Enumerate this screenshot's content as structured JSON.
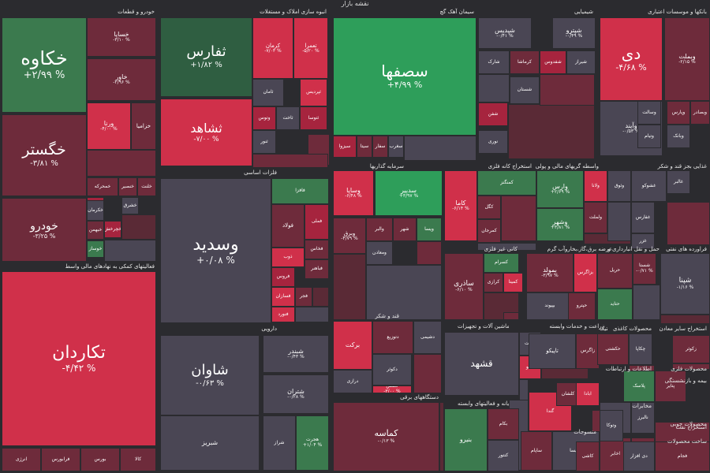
{
  "map_title": "نقشه بازار",
  "colors": {
    "strong_up": "#2e9e5a",
    "up": "#3b7a4e",
    "mild_up": "#2f5e41",
    "neutral": "#4a4654",
    "mild_down": "#6e2b3b",
    "down": "#a6243e",
    "strong_down": "#d0304a"
  },
  "sectors": [
    "خودرو و قطعات",
    "انبوه سازی املاک و مستغلات",
    "سیمان آهک گچ",
    "شیمیایی",
    "بانکها و موسسات اعتباری",
    "فعالیتهای کمکی به نهادهای مالی واسط",
    "فلزات اساسی",
    "سرمایه گذاریها",
    "استخراج کانه فلزی",
    "واسطه گریهای مالی و پولی",
    "غذایی بجز قند و شکر",
    "کانی غیر فلزی",
    "عرضه برق،گاز،بخاروآب گرم",
    "حمل و نقل انبارداری و",
    "فراورده های نفتی",
    "دارویی",
    "قند و شکر",
    "ماشین آلات و تجهیزات",
    "زراعت و خدمات وابسته",
    "محصولات کاغذی",
    "استخراج سایر معادن",
    "دستگاههای برقی",
    "رایانه و فعالیتهای وابسته",
    "لاستیک و پلاستیک",
    "اطلاعات و ارتباطات",
    "محصولات فلزی",
    "مخابرات",
    "بیمه و بازنشستگی",
    "منسوجات",
    "محصولات چوبی",
    "استخراج نفت",
    "ساخت محصولات"
  ],
  "cells": [
    {
      "name": "خکاوه",
      "change": "+۲/۹۹ %",
      "tone": "up"
    },
    {
      "name": "خگستر",
      "change": "-۳/۸۱ %",
      "tone": "mild_down"
    },
    {
      "name": "خودرو",
      "change": "-۳/۲۵ %",
      "tone": "mild_down"
    },
    {
      "name": "خساپا",
      "change": "-۳/۱۰ %",
      "tone": "mild_down"
    },
    {
      "name": "خاور",
      "change": "-۲/۹۶ %",
      "tone": "mild_down"
    },
    {
      "name": "ورنا",
      "change": "-۴/۰۰ %",
      "tone": "strong_down"
    },
    {
      "name": "خزامیا",
      "change": "",
      "tone": "mild_down"
    },
    {
      "name": "خنصیر",
      "change": "",
      "tone": "mild_down"
    },
    {
      "name": "خبهمن",
      "change": "",
      "tone": "mild_down"
    },
    {
      "name": "خمحرکه",
      "change": "",
      "tone": "mild_down"
    },
    {
      "name": "خفناور",
      "change": "",
      "tone": "down"
    },
    {
      "name": "خلنت",
      "change": "",
      "tone": "mild_down"
    },
    {
      "name": "خکرمان",
      "change": "",
      "tone": "neutral"
    },
    {
      "name": "خوساز",
      "change": "",
      "tone": "up"
    },
    {
      "name": "خچرخش",
      "change": "",
      "tone": "down"
    },
    {
      "name": "خشرق",
      "change": "",
      "tone": "neutral"
    },
    {
      "name": "ثفارس",
      "change": "+۱/۸۲ %",
      "tone": "mild_up"
    },
    {
      "name": "ثشاهد",
      "change": "-۷/۰۰ %",
      "tone": "strong_down"
    },
    {
      "name": "کرمان",
      "change": "-۷/۰۳ %",
      "tone": "strong_down"
    },
    {
      "name": "تعمرا",
      "change": "-۵/۲۰ %",
      "tone": "strong_down"
    },
    {
      "name": "ثامان",
      "change": "",
      "tone": "neutral"
    },
    {
      "name": "ثپردیس",
      "change": "",
      "tone": "strong_down"
    },
    {
      "name": "ثاخت",
      "change": "",
      "tone": "neutral"
    },
    {
      "name": "ثتوسا",
      "change": "",
      "tone": "down"
    },
    {
      "name": "ثنور",
      "change": "",
      "tone": "neutral"
    },
    {
      "name": "وتوس",
      "change": "",
      "tone": "down"
    },
    {
      "name": "سصفها",
      "change": "+۴/۹۹ %",
      "tone": "strong_up"
    },
    {
      "name": "سیزوا",
      "change": "",
      "tone": "down"
    },
    {
      "name": "سیتا",
      "change": "",
      "tone": "mild_down"
    },
    {
      "name": "سفار",
      "change": "",
      "tone": "mild_down"
    },
    {
      "name": "سغرب",
      "change": "",
      "tone": "neutral"
    },
    {
      "name": "شپدیس",
      "change": "-۰/۴۱ %",
      "tone": "neutral"
    },
    {
      "name": "شپترو",
      "change": "-۰/۴۹ %",
      "tone": "neutral"
    },
    {
      "name": "شارک",
      "change": "",
      "tone": "neutral"
    },
    {
      "name": "کرماشا",
      "change": "",
      "tone": "mild_down"
    },
    {
      "name": "شفدوس",
      "change": "",
      "tone": "down"
    },
    {
      "name": "شیراز",
      "change": "",
      "tone": "neutral"
    },
    {
      "name": "شستان",
      "change": "",
      "tone": "neutral"
    },
    {
      "name": "شفن",
      "change": "",
      "tone": "down"
    },
    {
      "name": "نوری",
      "change": "",
      "tone": "neutral"
    },
    {
      "name": "دی",
      "change": "-۴/۶۸ %",
      "tone": "strong_down"
    },
    {
      "name": "وبملت",
      "change": "-۲/۱۵ %",
      "tone": "mild_down"
    },
    {
      "name": "وآیند",
      "change": "-۰/۵۳ %",
      "tone": "neutral"
    },
    {
      "name": "وسالت",
      "change": "",
      "tone": "neutral"
    },
    {
      "name": "وتیام",
      "change": "",
      "tone": "neutral"
    },
    {
      "name": "وپارس",
      "change": "",
      "tone": "mild_down"
    },
    {
      "name": "وبصادر",
      "change": "",
      "tone": "mild_down"
    },
    {
      "name": "وبانک",
      "change": "",
      "tone": "neutral"
    },
    {
      "name": "تکاردان",
      "change": "-۴/۴۲ %",
      "tone": "strong_down"
    },
    {
      "name": "انرژی",
      "change": "",
      "tone": "mild_down"
    },
    {
      "name": "فرابورس",
      "change": "",
      "tone": "mild_down"
    },
    {
      "name": "بورس",
      "change": "",
      "tone": "mild_down"
    },
    {
      "name": "کالا",
      "change": "",
      "tone": "mild_down"
    },
    {
      "name": "وسدید",
      "change": "+۰/۰۸ %",
      "tone": "neutral"
    },
    {
      "name": "فافزا",
      "change": "",
      "tone": "up"
    },
    {
      "name": "فولاد",
      "change": "",
      "tone": "mild_down"
    },
    {
      "name": "فملی",
      "change": "",
      "tone": "down"
    },
    {
      "name": "فخاس",
      "change": "",
      "tone": "mild_down"
    },
    {
      "name": "ذوب",
      "change": "",
      "tone": "strong_down"
    },
    {
      "name": "فروس",
      "change": "",
      "tone": "down"
    },
    {
      "name": "فباهنر",
      "change": "",
      "tone": "mild_down"
    },
    {
      "name": "فسازان",
      "change": "",
      "tone": "strong_down"
    },
    {
      "name": "فجر",
      "change": "",
      "tone": "mild_down"
    },
    {
      "name": "فنورد",
      "change": "",
      "tone": "strong_down"
    },
    {
      "name": "وساپا",
      "change": "-۶/۴۸ %",
      "tone": "strong_down"
    },
    {
      "name": "سدبیر",
      "change": "+۳/۹۷ %",
      "tone": "strong_up"
    },
    {
      "name": "وبرق",
      "change": "-۴/۷۹ %",
      "tone": "mild_down"
    },
    {
      "name": "والبر",
      "change": "",
      "tone": "mild_down"
    },
    {
      "name": "شهر",
      "change": "",
      "tone": "mild_down"
    },
    {
      "name": "ویسا",
      "change": "",
      "tone": "up"
    },
    {
      "name": "ومعادن",
      "change": "",
      "tone": "neutral"
    },
    {
      "name": "کاما",
      "change": "-۶/۱۴ %",
      "tone": "strong_down"
    },
    {
      "name": "کمنگنز",
      "change": "",
      "tone": "up"
    },
    {
      "name": "کگل",
      "change": "",
      "tone": "mild_down"
    },
    {
      "name": "کمرجان",
      "change": "",
      "tone": "mild_down"
    },
    {
      "name": "وارس",
      "change": "+۲/۶۹ %",
      "tone": "up"
    },
    {
      "name": "وشهر",
      "change": "+۳/۸۱ %",
      "tone": "up"
    },
    {
      "name": "ولانا",
      "change": "",
      "tone": "strong_down"
    },
    {
      "name": "وثوق",
      "change": "",
      "tone": "neutral"
    },
    {
      "name": "ولملت",
      "change": "",
      "tone": "mild_down"
    },
    {
      "name": "غالبر",
      "change": "",
      "tone": "neutral"
    },
    {
      "name": "غشوکو",
      "change": "",
      "tone": "neutral"
    },
    {
      "name": "غفارس",
      "change": "",
      "tone": "neutral"
    },
    {
      "name": "غزر",
      "change": "",
      "tone": "neutral"
    },
    {
      "name": "ساذری",
      "change": "-۶/۱۰ %",
      "tone": "mild_down"
    },
    {
      "name": "کسرام",
      "change": "",
      "tone": "up"
    },
    {
      "name": "کرازی",
      "change": "",
      "tone": "mild_down"
    },
    {
      "name": "کمینا",
      "change": "",
      "tone": "strong_down"
    },
    {
      "name": "بمولد",
      "change": "-۳/۹۷ %",
      "tone": "mild_down"
    },
    {
      "name": "بزاگرس",
      "change": "",
      "tone": "strong_down"
    },
    {
      "name": "بپیوند",
      "change": "",
      "tone": "neutral"
    },
    {
      "name": "حپترو",
      "change": "",
      "tone": "mild_down"
    },
    {
      "name": "حریل",
      "change": "",
      "tone": "mild_down"
    },
    {
      "name": "حتاید",
      "change": "",
      "tone": "up"
    },
    {
      "name": "شستا",
      "change": "-۰/۷۱ %",
      "tone": "mild_down"
    },
    {
      "name": "شپنا",
      "change": "-۱/۱۶ %",
      "tone": "neutral"
    },
    {
      "name": "شاوان",
      "change": "-۰/۶۳ %",
      "tone": "neutral"
    },
    {
      "name": "شبندر",
      "change": "-۰/۴۳ %",
      "tone": "neutral"
    },
    {
      "name": "شتران",
      "change": "-۰/۲۸ %",
      "tone": "neutral"
    },
    {
      "name": "شبریز",
      "change": "",
      "tone": "neutral"
    },
    {
      "name": "شراز",
      "change": "",
      "tone": "neutral"
    },
    {
      "name": "هجرت",
      "change": "+۱/۰۴ %",
      "tone": "up"
    },
    {
      "name": "برکت",
      "change": "",
      "tone": "strong_down"
    },
    {
      "name": "دتوزیع",
      "change": "",
      "tone": "mild_down"
    },
    {
      "name": "دشیمی",
      "change": "",
      "tone": "neutral"
    },
    {
      "name": "دکوثر",
      "change": "",
      "tone": "neutral"
    },
    {
      "name": "درازی",
      "change": "",
      "tone": "neutral"
    },
    {
      "name": "قنقش",
      "change": "-۳/۰۰ %",
      "tone": "strong_down"
    },
    {
      "name": "قشهد",
      "change": "",
      "tone": "neutral"
    },
    {
      "name": "قثابت",
      "change": "",
      "tone": "neutral"
    },
    {
      "name": "تکنو",
      "change": "",
      "tone": "strong_down"
    },
    {
      "name": "تاپیکو",
      "change": "",
      "tone": "neutral"
    },
    {
      "name": "زاگرس",
      "change": "",
      "tone": "mild_down"
    },
    {
      "name": "حکشتی",
      "change": "",
      "tone": "mild_down"
    },
    {
      "name": "چکاپا",
      "change": "",
      "tone": "neutral"
    },
    {
      "name": "زکوثر",
      "change": "",
      "tone": "mild_down"
    },
    {
      "name": "کماسه",
      "change": "-۰/۱۳ %",
      "tone": "mild_down"
    },
    {
      "name": "بنیرو",
      "change": "",
      "tone": "up"
    },
    {
      "name": "بکام",
      "change": "",
      "tone": "mild_down"
    },
    {
      "name": "کنتور",
      "change": "",
      "tone": "neutral"
    },
    {
      "name": "گندا",
      "change": "",
      "tone": "strong_down"
    },
    {
      "name": "کلشان",
      "change": "",
      "tone": "mild_down"
    },
    {
      "name": "ابادا",
      "change": "",
      "tone": "strong_down"
    },
    {
      "name": "وپاسار",
      "change": "",
      "tone": "mild_down"
    },
    {
      "name": "فکمند",
      "change": "",
      "tone": "mild_down"
    },
    {
      "name": "کترام",
      "change": "",
      "tone": "mild_down"
    },
    {
      "name": "پلاسک",
      "change": "",
      "tone": "up"
    },
    {
      "name": "پتایر",
      "change": "",
      "tone": "mild_down"
    },
    {
      "name": "پیرا",
      "change": "",
      "tone": "neutral"
    },
    {
      "name": "اخابر",
      "change": "",
      "tone": "mild_down"
    },
    {
      "name": "نالبرز",
      "change": "",
      "tone": "neutral"
    },
    {
      "name": "سکرما",
      "change": "",
      "tone": "mild_down"
    },
    {
      "name": "پیمپکار",
      "change": "",
      "tone": "mild_down"
    },
    {
      "name": "ساپام",
      "change": "",
      "tone": "mild_down"
    },
    {
      "name": "ساپسا",
      "change": "",
      "tone": "neutral"
    },
    {
      "name": "وتوکا",
      "change": "",
      "tone": "neutral"
    },
    {
      "name": "کاشی",
      "change": "",
      "tone": "mild_down"
    },
    {
      "name": "دی افزار",
      "change": "",
      "tone": "neutral"
    },
    {
      "name": "فجام",
      "change": "",
      "tone": "mild_down"
    },
    {
      "name": "فاسمین",
      "change": "",
      "tone": "neutral"
    }
  ]
}
